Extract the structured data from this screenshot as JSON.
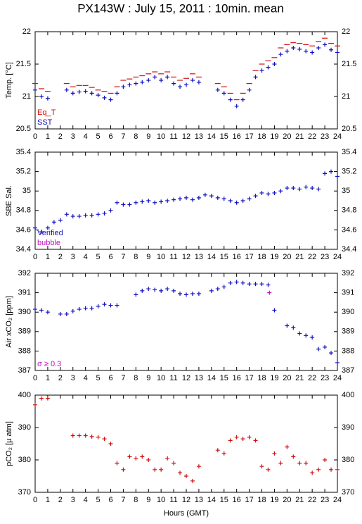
{
  "chart_data": [
    {
      "type": "scatter",
      "title": "PX143W : July 15, 2011 : 10min. mean",
      "ylabel": "Temp. [°C]",
      "legend": "lower left",
      "xlim": [
        0,
        24
      ],
      "xticks": [
        0,
        1,
        2,
        3,
        4,
        5,
        6,
        7,
        8,
        9,
        10,
        11,
        12,
        13,
        14,
        15,
        16,
        17,
        18,
        19,
        20,
        21,
        22,
        23,
        24
      ],
      "ylim": [
        20.5,
        22
      ],
      "yticks": [
        20.5,
        21,
        21.5,
        22
      ],
      "series": [
        {
          "name": "Eq_T",
          "color": "#d01010",
          "marker": "dash",
          "x": [
            0,
            0.5,
            1,
            1.5,
            2,
            2.5,
            3,
            3.5,
            4,
            4.5,
            5,
            5.5,
            6,
            6.5,
            7,
            7.5,
            8,
            8.5,
            9,
            9.5,
            10,
            10.5,
            11,
            11.5,
            12,
            12.5,
            13,
            13.5,
            14,
            14.5,
            15,
            15.5,
            16,
            16.5,
            17,
            17.5,
            18,
            18.5,
            19,
            19.5,
            20,
            20.5,
            21,
            21.5,
            22,
            22.5,
            23,
            23.5,
            24
          ],
          "values": [
            21.2,
            21.12,
            21.08,
            null,
            null,
            21.2,
            21.15,
            21.17,
            21.17,
            21.14,
            21.1,
            21.08,
            21.05,
            21.15,
            21.25,
            21.27,
            21.3,
            21.32,
            21.35,
            21.38,
            21.35,
            21.38,
            21.3,
            21.25,
            21.28,
            21.35,
            21.3,
            null,
            null,
            21.2,
            21.15,
            21.05,
            20.95,
            21.05,
            21.2,
            21.4,
            21.5,
            21.55,
            21.6,
            21.75,
            21.8,
            21.83,
            21.82,
            21.8,
            21.78,
            21.85,
            21.9,
            21.82,
            21.78
          ]
        },
        {
          "name": "SST",
          "color": "#1010c0",
          "marker": "plus",
          "x": [
            0,
            0.5,
            1,
            1.5,
            2,
            2.5,
            3,
            3.5,
            4,
            4.5,
            5,
            5.5,
            6,
            6.5,
            7,
            7.5,
            8,
            8.5,
            9,
            9.5,
            10,
            10.5,
            11,
            11.5,
            12,
            12.5,
            13,
            13.5,
            14,
            14.5,
            15,
            15.5,
            16,
            16.5,
            17,
            17.5,
            18,
            18.5,
            19,
            19.5,
            20,
            20.5,
            21,
            21.5,
            22,
            22.5,
            23,
            23.5,
            24
          ],
          "values": [
            21.1,
            21.0,
            20.97,
            null,
            null,
            21.1,
            21.05,
            21.07,
            21.08,
            21.05,
            21.02,
            20.98,
            20.95,
            21.05,
            21.15,
            21.18,
            21.2,
            21.22,
            21.25,
            21.3,
            21.25,
            21.3,
            21.2,
            21.15,
            21.18,
            21.25,
            21.22,
            null,
            null,
            21.1,
            21.05,
            20.95,
            20.85,
            20.95,
            21.1,
            21.3,
            21.4,
            21.45,
            21.5,
            21.65,
            21.7,
            21.75,
            21.73,
            21.7,
            21.68,
            21.75,
            21.8,
            21.72,
            21.68
          ]
        }
      ]
    },
    {
      "type": "scatter",
      "ylabel": "SBE Sal.",
      "legend": "lower left",
      "xlim": [
        0,
        24
      ],
      "xticks": [
        0,
        1,
        2,
        3,
        4,
        5,
        6,
        7,
        8,
        9,
        10,
        11,
        12,
        13,
        14,
        15,
        16,
        17,
        18,
        19,
        20,
        21,
        22,
        23,
        24
      ],
      "ylim": [
        34.4,
        35.4
      ],
      "yticks": [
        34.4,
        34.6,
        34.8,
        35,
        35.2,
        35.4
      ],
      "series": [
        {
          "name": "Verified",
          "color": "#1010c0",
          "marker": "plus",
          "x": [
            0,
            0.5,
            1,
            1.5,
            2,
            2.5,
            3,
            3.5,
            4,
            4.5,
            5,
            5.5,
            6,
            6.5,
            7,
            7.5,
            8,
            8.5,
            9,
            9.5,
            10,
            10.5,
            11,
            11.5,
            12,
            12.5,
            13,
            13.5,
            14,
            14.5,
            15,
            15.5,
            16,
            16.5,
            17,
            17.5,
            18,
            18.5,
            19,
            19.5,
            20,
            20.5,
            21,
            21.5,
            22,
            22.5,
            23,
            23.5,
            24
          ],
          "values": [
            34.62,
            34.58,
            34.62,
            34.68,
            34.7,
            34.76,
            34.74,
            34.74,
            34.75,
            34.75,
            34.76,
            34.77,
            34.8,
            34.88,
            34.86,
            34.86,
            34.88,
            34.89,
            34.9,
            34.88,
            34.89,
            34.9,
            34.91,
            34.92,
            34.93,
            34.91,
            34.93,
            34.96,
            34.95,
            34.93,
            34.92,
            34.9,
            34.88,
            34.9,
            34.92,
            34.95,
            34.98,
            34.97,
            34.98,
            35.0,
            35.03,
            35.03,
            35.02,
            35.04,
            35.03,
            35.02,
            35.18,
            35.2,
            35.15
          ]
        },
        {
          "name": "bubble",
          "color": "#c010c0",
          "marker": "plus",
          "x": [],
          "values": []
        }
      ]
    },
    {
      "type": "scatter",
      "ylabel": "Air xCO₂ [ppm]",
      "legend": "lower left",
      "xlim": [
        0,
        24
      ],
      "xticks": [
        0,
        1,
        2,
        3,
        4,
        5,
        6,
        7,
        8,
        9,
        10,
        11,
        12,
        13,
        14,
        15,
        16,
        17,
        18,
        19,
        20,
        21,
        22,
        23,
        24
      ],
      "ylim": [
        387,
        392
      ],
      "yticks": [
        387,
        388,
        389,
        390,
        391,
        392
      ],
      "series": [
        {
          "name": "Air xCO₂",
          "color": "#1010c0",
          "marker": "plus",
          "in_legend": false,
          "x": [
            0,
            0.5,
            1,
            1.5,
            2,
            2.5,
            3,
            3.5,
            4,
            4.5,
            5,
            5.5,
            6,
            6.5,
            7,
            7.5,
            8,
            8.5,
            9,
            9.5,
            10,
            10.5,
            11,
            11.5,
            12,
            12.5,
            13,
            13.5,
            14,
            14.5,
            15,
            15.5,
            16,
            16.5,
            17,
            17.5,
            18,
            18.5,
            19,
            19.5,
            20,
            20.5,
            21,
            21.5,
            22,
            22.5,
            23,
            23.5,
            24
          ],
          "values": [
            390.15,
            390.1,
            390.0,
            null,
            389.9,
            389.9,
            390.05,
            390.15,
            390.2,
            390.2,
            390.3,
            390.4,
            390.35,
            390.35,
            null,
            null,
            390.9,
            391.1,
            391.2,
            391.15,
            391.1,
            391.2,
            391.1,
            390.95,
            390.9,
            390.95,
            390.95,
            null,
            391.1,
            391.2,
            391.3,
            391.5,
            391.55,
            391.5,
            391.45,
            391.45,
            391.45,
            391.4,
            390.1,
            null,
            389.3,
            389.2,
            388.9,
            388.8,
            388.7,
            388.1,
            388.2,
            387.9,
            387.4
          ]
        },
        {
          "name": "σ ≥ 0.3",
          "color": "#c010c0",
          "marker": "plus",
          "x": [
            18.6
          ],
          "values": [
            391.0
          ]
        }
      ]
    },
    {
      "type": "scatter",
      "ylabel": "pCO₂ [µ atm]",
      "xlabel": "Hours (GMT)",
      "xlim": [
        0,
        24
      ],
      "xticks": [
        0,
        1,
        2,
        3,
        4,
        5,
        6,
        7,
        8,
        9,
        10,
        11,
        12,
        13,
        14,
        15,
        16,
        17,
        18,
        19,
        20,
        21,
        22,
        23,
        24
      ],
      "ylim": [
        370,
        400
      ],
      "yticks": [
        370,
        380,
        390,
        400
      ],
      "series": [
        {
          "name": "pCO₂",
          "color": "#d01010",
          "marker": "plus",
          "in_legend": false,
          "x": [
            0,
            0.5,
            1,
            1.5,
            2,
            2.5,
            3,
            3.5,
            4,
            4.5,
            5,
            5.5,
            6,
            6.5,
            7,
            7.5,
            8,
            8.5,
            9,
            9.5,
            10,
            10.5,
            11,
            11.5,
            12,
            12.5,
            13,
            13.5,
            14,
            14.5,
            15,
            15.5,
            16,
            16.5,
            17,
            17.5,
            18,
            18.5,
            19,
            19.5,
            20,
            20.5,
            21,
            21.5,
            22,
            22.5,
            23,
            23.5,
            24
          ],
          "values": [
            397,
            399,
            399,
            null,
            null,
            null,
            387.5,
            387.5,
            387.5,
            387.2,
            387,
            386.5,
            385,
            379,
            377,
            381,
            380.5,
            381,
            380,
            377,
            377,
            380.5,
            379,
            376,
            375,
            373.5,
            378,
            null,
            null,
            383,
            382,
            386,
            387,
            386.5,
            387,
            386,
            378,
            377,
            382,
            379,
            384,
            381,
            379,
            379,
            376,
            377,
            380,
            377,
            377
          ]
        }
      ]
    }
  ]
}
